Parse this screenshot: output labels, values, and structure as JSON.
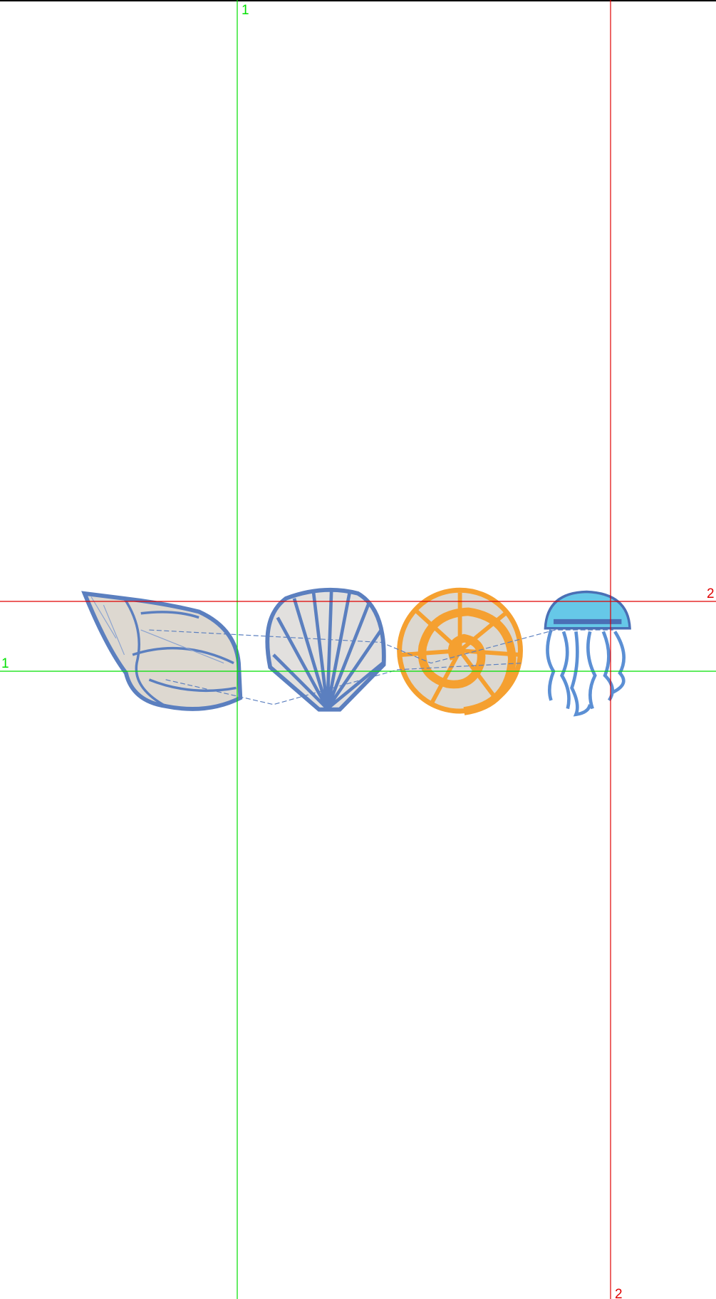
{
  "guides": [
    {
      "label": "1",
      "color": "#00e000",
      "orientation": "vertical"
    },
    {
      "label": "1",
      "color": "#00e000",
      "orientation": "horizontal"
    },
    {
      "label": "2",
      "color": "#e00000",
      "orientation": "horizontal"
    },
    {
      "label": "2",
      "color": "#e00000",
      "orientation": "vertical"
    }
  ]
}
